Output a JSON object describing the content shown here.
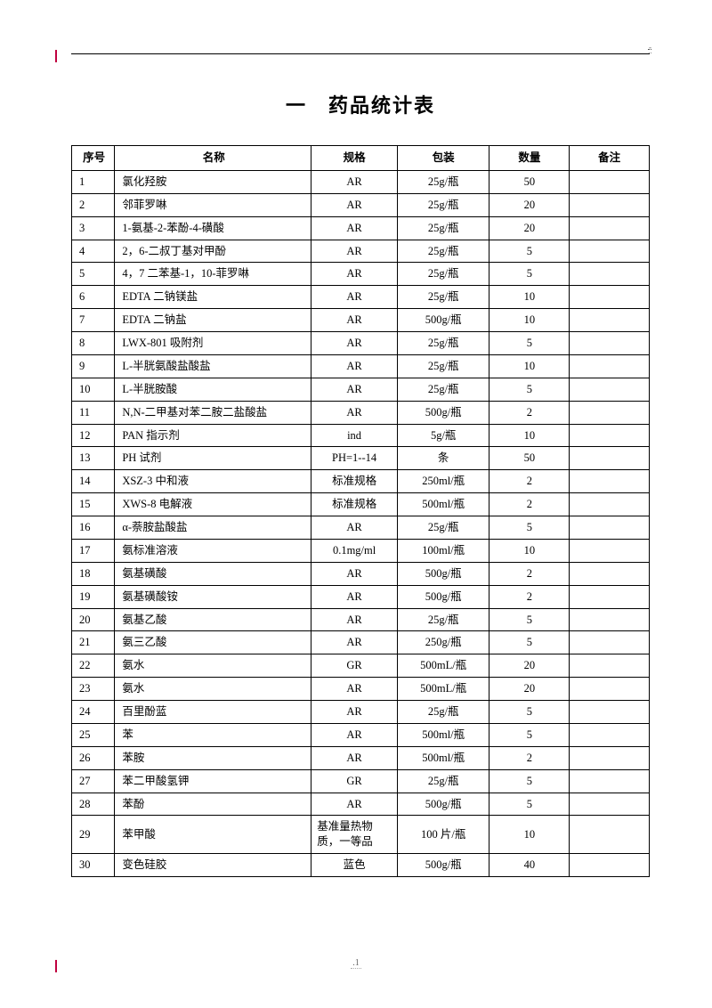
{
  "title": "一　药品统计表",
  "top_corner_mark": "-",
  "footer": ".1",
  "columns": [
    "序号",
    "名称",
    "规格",
    "包装",
    "数量",
    "备注"
  ],
  "rows": [
    {
      "idx": "1",
      "name": "氯化羟胺",
      "spec": "AR",
      "pack": "25g/瓶",
      "qty": "50",
      "note": ""
    },
    {
      "idx": "2",
      "name": "邻菲罗啉",
      "spec": "AR",
      "pack": "25g/瓶",
      "qty": "20",
      "note": ""
    },
    {
      "idx": "3",
      "name": "1-氨基-2-苯酚-4-磺酸",
      "spec": "AR",
      "pack": "25g/瓶",
      "qty": "20",
      "note": ""
    },
    {
      "idx": "4",
      "name": "2，6-二叔丁基对甲酚",
      "spec": "AR",
      "pack": "25g/瓶",
      "qty": "5",
      "note": ""
    },
    {
      "idx": "5",
      "name": "4，7 二苯基-1，10-菲罗啉",
      "spec": "AR",
      "pack": "25g/瓶",
      "qty": "5",
      "note": ""
    },
    {
      "idx": "6",
      "name": "EDTA 二钠镁盐",
      "spec": "AR",
      "pack": "25g/瓶",
      "qty": "10",
      "note": ""
    },
    {
      "idx": "7",
      "name": "EDTA 二钠盐",
      "spec": "AR",
      "pack": "500g/瓶",
      "qty": "10",
      "note": ""
    },
    {
      "idx": "8",
      "name": "LWX-801 吸附剂",
      "spec": "AR",
      "pack": "25g/瓶",
      "qty": "5",
      "note": ""
    },
    {
      "idx": "9",
      "name": "L-半胱氨酸盐酸盐",
      "spec": "AR",
      "pack": "25g/瓶",
      "qty": "10",
      "note": ""
    },
    {
      "idx": "10",
      "name": "L-半胱胺酸",
      "spec": "AR",
      "pack": "25g/瓶",
      "qty": "5",
      "note": ""
    },
    {
      "idx": "11",
      "name": "N,N-二甲基对苯二胺二盐酸盐",
      "spec": "AR",
      "pack": "500g/瓶",
      "qty": "2",
      "note": ""
    },
    {
      "idx": "12",
      "name": "PAN 指示剂",
      "spec": "ind",
      "pack": "5g/瓶",
      "qty": "10",
      "note": ""
    },
    {
      "idx": "13",
      "name": "PH 试剂",
      "spec": "PH=1--14",
      "pack": "条",
      "qty": "50",
      "note": ""
    },
    {
      "idx": "14",
      "name": "XSZ-3 中和液",
      "spec": "标准规格",
      "pack": "250ml/瓶",
      "qty": "2",
      "note": ""
    },
    {
      "idx": "15",
      "name": "XWS-8 电解液",
      "spec": "标准规格",
      "pack": "500ml/瓶",
      "qty": "2",
      "note": ""
    },
    {
      "idx": "16",
      "name": "α-萘胺盐酸盐",
      "spec": "AR",
      "pack": "25g/瓶",
      "qty": "5",
      "note": ""
    },
    {
      "idx": "17",
      "name": "氨标准溶液",
      "spec": "0.1mg/ml",
      "pack": "100ml/瓶",
      "qty": "10",
      "note": ""
    },
    {
      "idx": "18",
      "name": "氨基磺酸",
      "spec": "AR",
      "pack": "500g/瓶",
      "qty": "2",
      "note": ""
    },
    {
      "idx": "19",
      "name": "氨基磺酸铵",
      "spec": "AR",
      "pack": "500g/瓶",
      "qty": "2",
      "note": ""
    },
    {
      "idx": "20",
      "name": "氨基乙酸",
      "spec": "AR",
      "pack": "25g/瓶",
      "qty": "5",
      "note": ""
    },
    {
      "idx": "21",
      "name": "氨三乙酸",
      "spec": "AR",
      "pack": "250g/瓶",
      "qty": "5",
      "note": ""
    },
    {
      "idx": "22",
      "name": "氨水",
      "spec": "GR",
      "pack": "500mL/瓶",
      "qty": "20",
      "note": ""
    },
    {
      "idx": "23",
      "name": "氨水",
      "spec": "AR",
      "pack": "500mL/瓶",
      "qty": "20",
      "note": ""
    },
    {
      "idx": "24",
      "name": "百里酚蓝",
      "spec": "AR",
      "pack": "25g/瓶",
      "qty": "5",
      "note": ""
    },
    {
      "idx": "25",
      "name": "苯",
      "spec": "AR",
      "pack": "500ml/瓶",
      "qty": "5",
      "note": ""
    },
    {
      "idx": "26",
      "name": "苯胺",
      "spec": "AR",
      "pack": "500ml/瓶",
      "qty": "2",
      "note": ""
    },
    {
      "idx": "27",
      "name": "苯二甲酸氢钾",
      "spec": "GR",
      "pack": "25g/瓶",
      "qty": "5",
      "note": ""
    },
    {
      "idx": "28",
      "name": "苯酚",
      "spec": "AR",
      "pack": "500g/瓶",
      "qty": "5",
      "note": ""
    },
    {
      "idx": "29",
      "name": "苯甲酸",
      "spec": "基准量热物质，一等品",
      "spec_left": true,
      "pack": "100 片/瓶",
      "qty": "10",
      "note": ""
    },
    {
      "idx": "30",
      "name": "变色硅胶",
      "spec": "蓝色",
      "pack": "500g/瓶",
      "qty": "40",
      "note": ""
    }
  ],
  "styles": {
    "page_bg": "#ffffff",
    "border_color": "#000000",
    "font_family": "SimSun",
    "title_fontsize": 22,
    "cell_fontsize": 12.5,
    "cursor_color": "#c00040"
  }
}
